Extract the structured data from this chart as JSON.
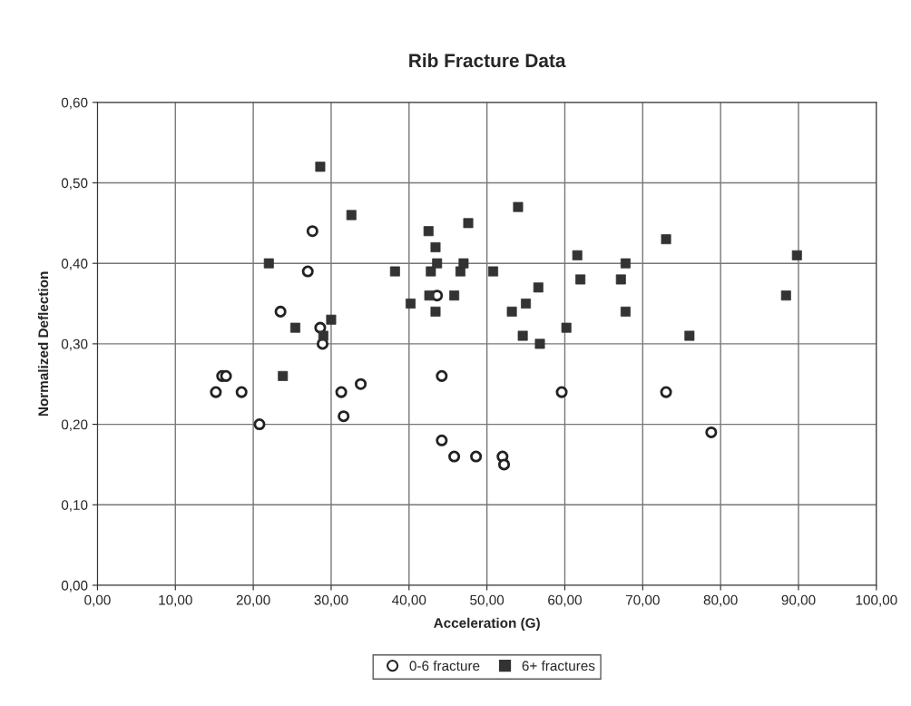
{
  "chart_data": {
    "type": "scatter",
    "title": "Rib Fracture Data",
    "xlabel": "Acceleration (G)",
    "ylabel": "Normalized Deflection",
    "xlim": [
      0,
      100
    ],
    "ylim": [
      0,
      0.6
    ],
    "xticks": [
      {
        "value": 0,
        "label": "0,00"
      },
      {
        "value": 10,
        "label": "10,00"
      },
      {
        "value": 20,
        "label": "20,00"
      },
      {
        "value": 30,
        "label": "30,00"
      },
      {
        "value": 40,
        "label": "40,00"
      },
      {
        "value": 50,
        "label": "50,00"
      },
      {
        "value": 60,
        "label": "60,00"
      },
      {
        "value": 70,
        "label": "70,00"
      },
      {
        "value": 80,
        "label": "80,00"
      },
      {
        "value": 90,
        "label": "90,00"
      },
      {
        "value": 100,
        "label": "100,00"
      }
    ],
    "yticks": [
      {
        "value": 0,
        "label": "0,00"
      },
      {
        "value": 0.1,
        "label": "0,10"
      },
      {
        "value": 0.2,
        "label": "0,20"
      },
      {
        "value": 0.3,
        "label": "0,30"
      },
      {
        "value": 0.4,
        "label": "0,40"
      },
      {
        "value": 0.5,
        "label": "0,50"
      },
      {
        "value": 0.6,
        "label": "0,60"
      }
    ],
    "grid": true,
    "legend": "bottom",
    "series": [
      {
        "name": "0-6 fracture",
        "color": "#ffffff",
        "marker": "circle",
        "x": [
          15.2,
          16.0,
          16.5,
          18.5,
          20.8,
          23.5,
          27.0,
          27.6,
          28.6,
          28.9,
          31.3,
          31.6,
          33.8,
          43.6,
          44.2,
          44.2,
          45.8,
          48.6,
          52.0,
          52.2,
          59.6,
          73.0,
          78.8
        ],
        "values": [
          0.24,
          0.26,
          0.26,
          0.24,
          0.2,
          0.34,
          0.39,
          0.44,
          0.32,
          0.3,
          0.24,
          0.21,
          0.25,
          0.36,
          0.26,
          0.18,
          0.16,
          0.16,
          0.16,
          0.15,
          0.24,
          0.24,
          0.19
        ]
      },
      {
        "name": "6+ fractures",
        "color": "#333333",
        "marker": "square",
        "x": [
          28.6,
          32.6,
          22.0,
          25.4,
          23.8,
          29.0,
          30.0,
          38.2,
          40.2,
          42.5,
          42.6,
          42.8,
          43.4,
          43.6,
          43.4,
          45.8,
          46.6,
          47.0,
          47.6,
          50.8,
          54.0,
          53.2,
          54.6,
          55.0,
          56.6,
          56.8,
          60.2,
          61.6,
          62.0,
          67.2,
          67.8,
          67.8,
          73.0,
          76.0,
          88.4,
          89.8
        ],
        "values": [
          0.52,
          0.46,
          0.4,
          0.32,
          0.26,
          0.31,
          0.33,
          0.39,
          0.35,
          0.44,
          0.36,
          0.39,
          0.42,
          0.4,
          0.34,
          0.36,
          0.39,
          0.4,
          0.45,
          0.39,
          0.47,
          0.34,
          0.31,
          0.35,
          0.37,
          0.3,
          0.32,
          0.41,
          0.38,
          0.38,
          0.4,
          0.34,
          0.43,
          0.31,
          0.36,
          0.41
        ]
      }
    ]
  }
}
